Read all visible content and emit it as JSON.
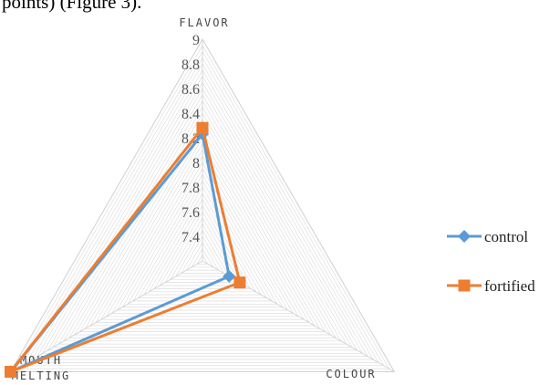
{
  "caption_fragment": "points) (Figure 3).",
  "chart_data": {
    "type": "radar",
    "axes": [
      "FLAVOR",
      "COLOUR",
      "MOUTH MELTING"
    ],
    "axis_label_lines": [
      [
        "FLAVOR"
      ],
      [
        "COLOUR"
      ],
      [
        "MOUTH",
        "MELTING"
      ]
    ],
    "rlim": [
      7.2,
      9.0
    ],
    "ticks": [
      "9",
      "8.8",
      "8.6",
      "8.4",
      "8.2",
      "8",
      "7.8",
      "7.6",
      "7.4"
    ],
    "tick_values": [
      9.0,
      8.8,
      8.6,
      8.4,
      8.2,
      8.0,
      7.8,
      7.6,
      7.4
    ],
    "grid_rings": 36,
    "series": [
      {
        "name": "control",
        "values": [
          8.23,
          7.45,
          9.0
        ],
        "color": "#5b9bd5",
        "marker": "diamond"
      },
      {
        "name": "fortified",
        "values": [
          8.28,
          7.55,
          9.0
        ],
        "color": "#ed7d31",
        "marker": "square"
      }
    ],
    "legend_position": "right"
  }
}
